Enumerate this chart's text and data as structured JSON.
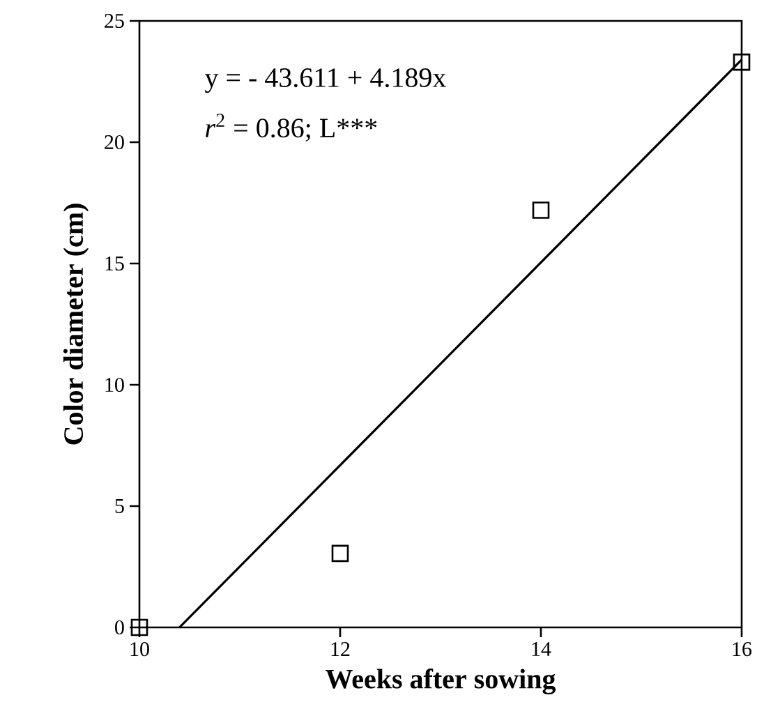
{
  "chart_data": {
    "type": "scatter",
    "xlabel": "Weeks after sowing",
    "ylabel": "Color diameter (cm)",
    "x": [
      10,
      12,
      14,
      16
    ],
    "series": [
      {
        "color": "#000000",
        "values": [
          0,
          3.05,
          17.2,
          23.3
        ]
      },
      {
        "type": "line",
        "marker": "none",
        "color": "#000000",
        "x": [
          10.4,
          16
        ],
        "values": [
          0,
          23.4
        ]
      }
    ],
    "xlim": [
      10,
      16
    ],
    "xticks": [
      10,
      12,
      14,
      16
    ],
    "ylim": [
      0,
      25
    ],
    "yticks": [
      0,
      5,
      10,
      15,
      20,
      25
    ],
    "marker": "square",
    "annotations": [
      "y = - 43.611 + 4.189x",
      "*r*$^{2}$ = 0.86; L***"
    ]
  }
}
